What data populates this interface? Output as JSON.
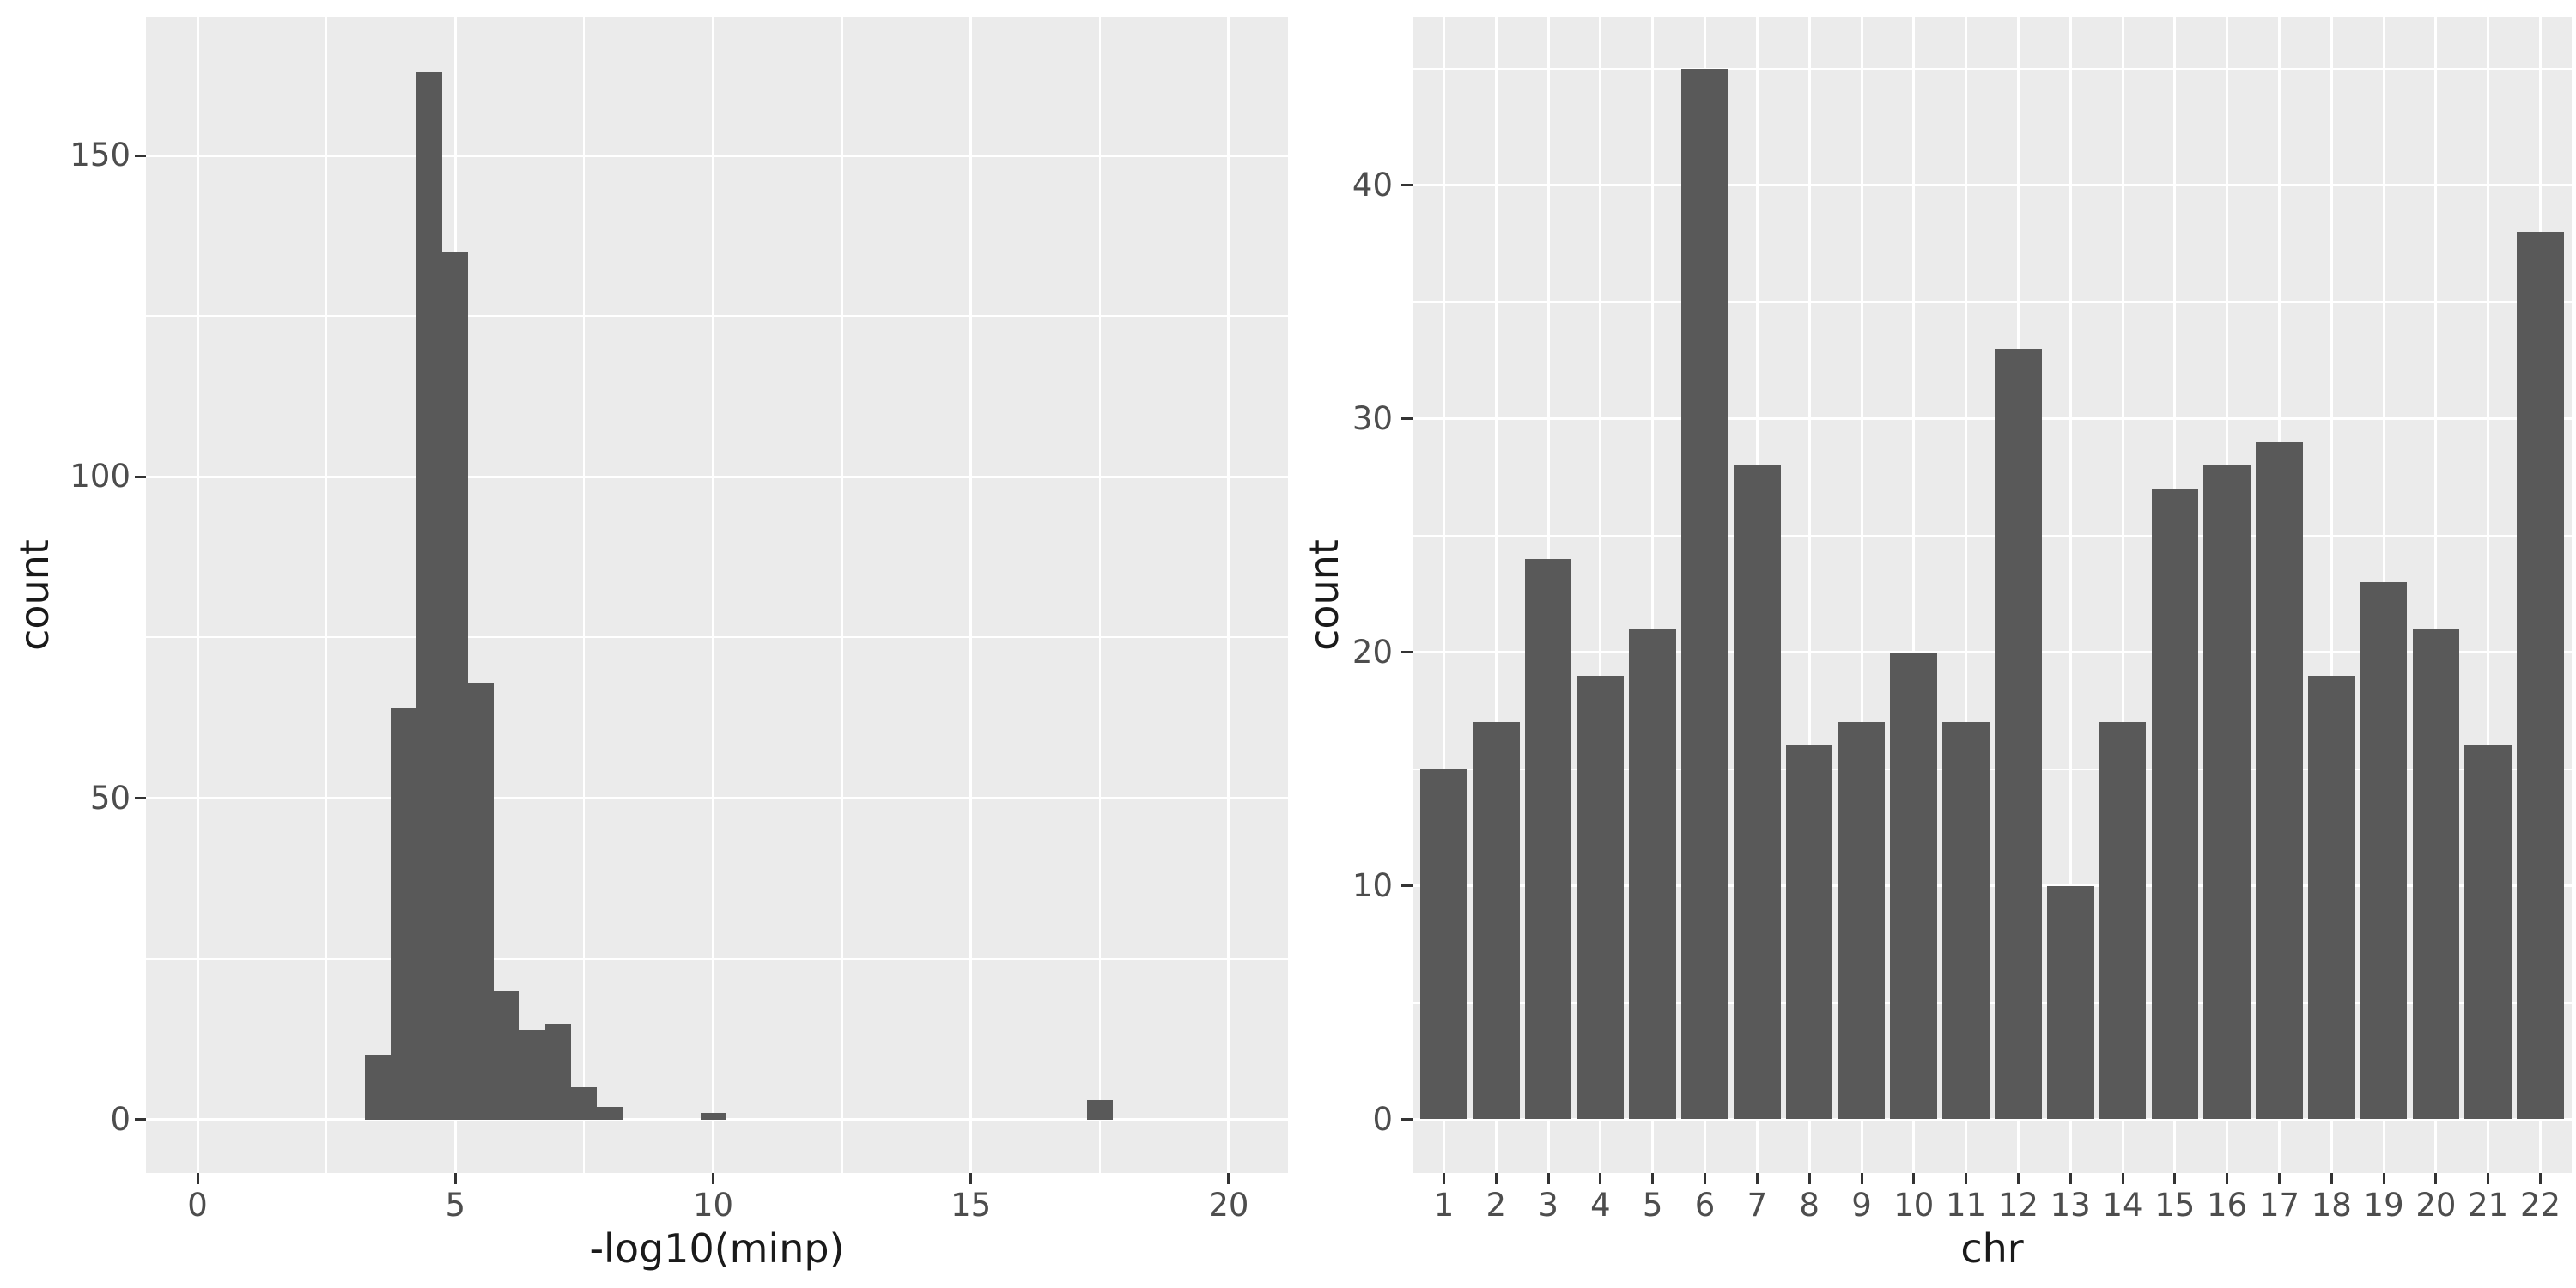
{
  "figure": {
    "background": "#FFFFFF"
  },
  "style": {
    "panel_bg": "#EBEBEB",
    "grid_color": "#FFFFFF",
    "bar_fill": "#595959",
    "tick_label_color": "#4D4D4D",
    "axis_title_color": "#1a1a1a",
    "tick_mark_color": "#333333"
  },
  "chart_data": [
    {
      "id": "minp-histogram",
      "type": "bar",
      "subtype": "histogram",
      "title": "",
      "xlabel": "-log10(minp)",
      "ylabel": "count",
      "binwidth": 0.5,
      "bins": [
        {
          "x0": 3.25,
          "count": 10
        },
        {
          "x0": 3.75,
          "count": 64
        },
        {
          "x0": 4.25,
          "count": 163
        },
        {
          "x0": 4.75,
          "count": 135
        },
        {
          "x0": 5.25,
          "count": 68
        },
        {
          "x0": 5.75,
          "count": 20
        },
        {
          "x0": 6.25,
          "count": 14
        },
        {
          "x0": 6.75,
          "count": 15
        },
        {
          "x0": 7.25,
          "count": 5
        },
        {
          "x0": 7.75,
          "count": 2
        },
        {
          "x0": 9.75,
          "count": 1
        },
        {
          "x0": 17.25,
          "count": 3
        }
      ],
      "x_ticks": [
        0,
        5,
        10,
        15,
        20
      ],
      "x_minor_ticks": [
        2.5,
        7.5,
        12.5,
        17.5
      ],
      "y_ticks": [
        0,
        50,
        100,
        150
      ],
      "y_minor_ticks": [
        25,
        75,
        125
      ],
      "xlim": [
        -1.0,
        21.15
      ],
      "ylim": [
        -8.3,
        171.5
      ],
      "grid": true,
      "legend": false
    },
    {
      "id": "chr-bar",
      "type": "bar",
      "subtype": "categorical",
      "title": "",
      "xlabel": "chr",
      "ylabel": "count",
      "categories": [
        "1",
        "2",
        "3",
        "4",
        "5",
        "6",
        "7",
        "8",
        "9",
        "10",
        "11",
        "12",
        "13",
        "14",
        "15",
        "16",
        "17",
        "18",
        "19",
        "20",
        "21",
        "22"
      ],
      "values": [
        15,
        17,
        24,
        19,
        21,
        45,
        28,
        16,
        17,
        20,
        17,
        33,
        10,
        17,
        27,
        28,
        29,
        19,
        23,
        21,
        16,
        38
      ],
      "y_ticks": [
        0,
        10,
        20,
        30,
        40
      ],
      "y_minor_ticks": [
        5,
        15,
        25,
        35,
        45
      ],
      "ylim": [
        -2.3,
        47.2
      ],
      "grid": true,
      "legend": false
    }
  ]
}
